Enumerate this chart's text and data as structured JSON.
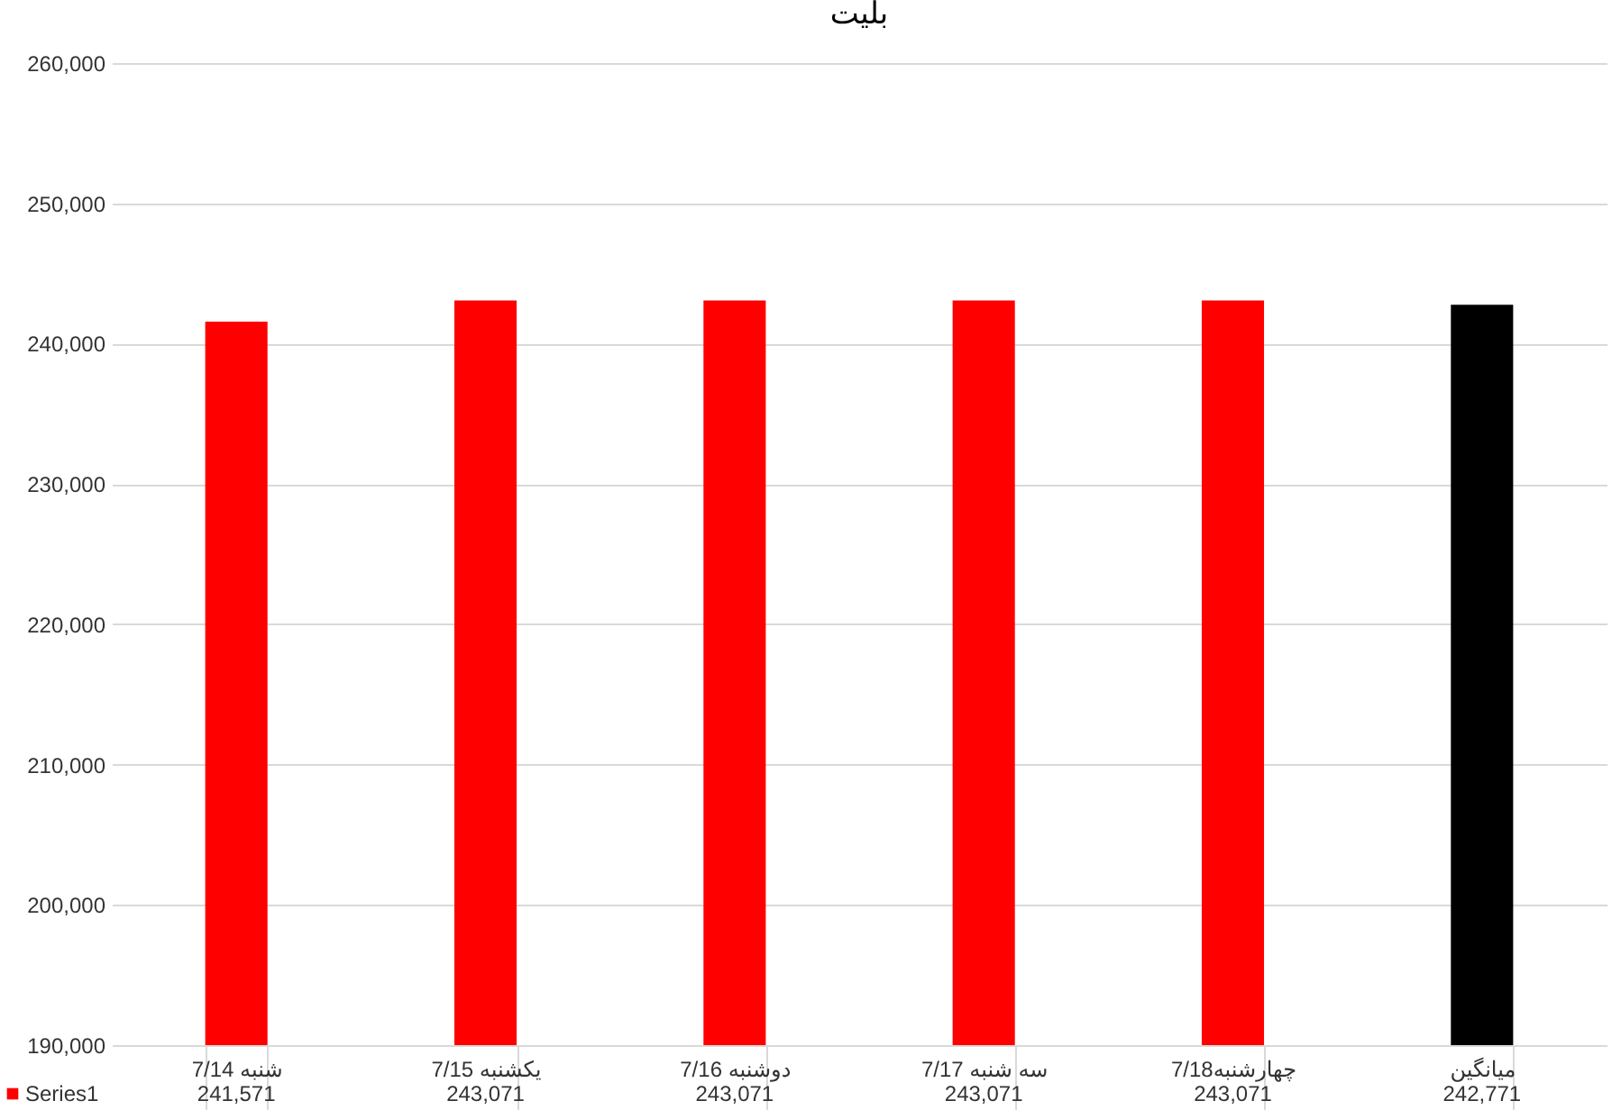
{
  "chart_data": {
    "type": "bar",
    "title": "بلیت",
    "categories": [
      "شنبه 7/14",
      "یکشنبه 7/15",
      "دوشنبه 7/16",
      "سه شنبه 7/17",
      "چهارشنبه7/18",
      "میانگین"
    ],
    "series": [
      {
        "name": "Series1",
        "color": "#ff0000",
        "colors": [
          "#ff0000",
          "#ff0000",
          "#ff0000",
          "#ff0000",
          "#ff0000",
          "#000000"
        ],
        "values": [
          241571,
          243071,
          243071,
          243071,
          243071,
          242771
        ],
        "value_labels": [
          "241,571",
          "243,071",
          "243,071",
          "243,071",
          "243,071",
          "242,771"
        ]
      }
    ],
    "ylim": [
      190000,
      260000
    ],
    "yticks": [
      {
        "value": 190000,
        "label": "190,000"
      },
      {
        "value": 200000,
        "label": "200,000"
      },
      {
        "value": 210000,
        "label": "210,000"
      },
      {
        "value": 220000,
        "label": "220,000"
      },
      {
        "value": 230000,
        "label": "230,000"
      },
      {
        "value": 240000,
        "label": "240,000"
      },
      {
        "value": 250000,
        "label": "250,000"
      },
      {
        "value": 260000,
        "label": "260,000"
      }
    ],
    "grid": "y",
    "legend": "bottom left"
  }
}
